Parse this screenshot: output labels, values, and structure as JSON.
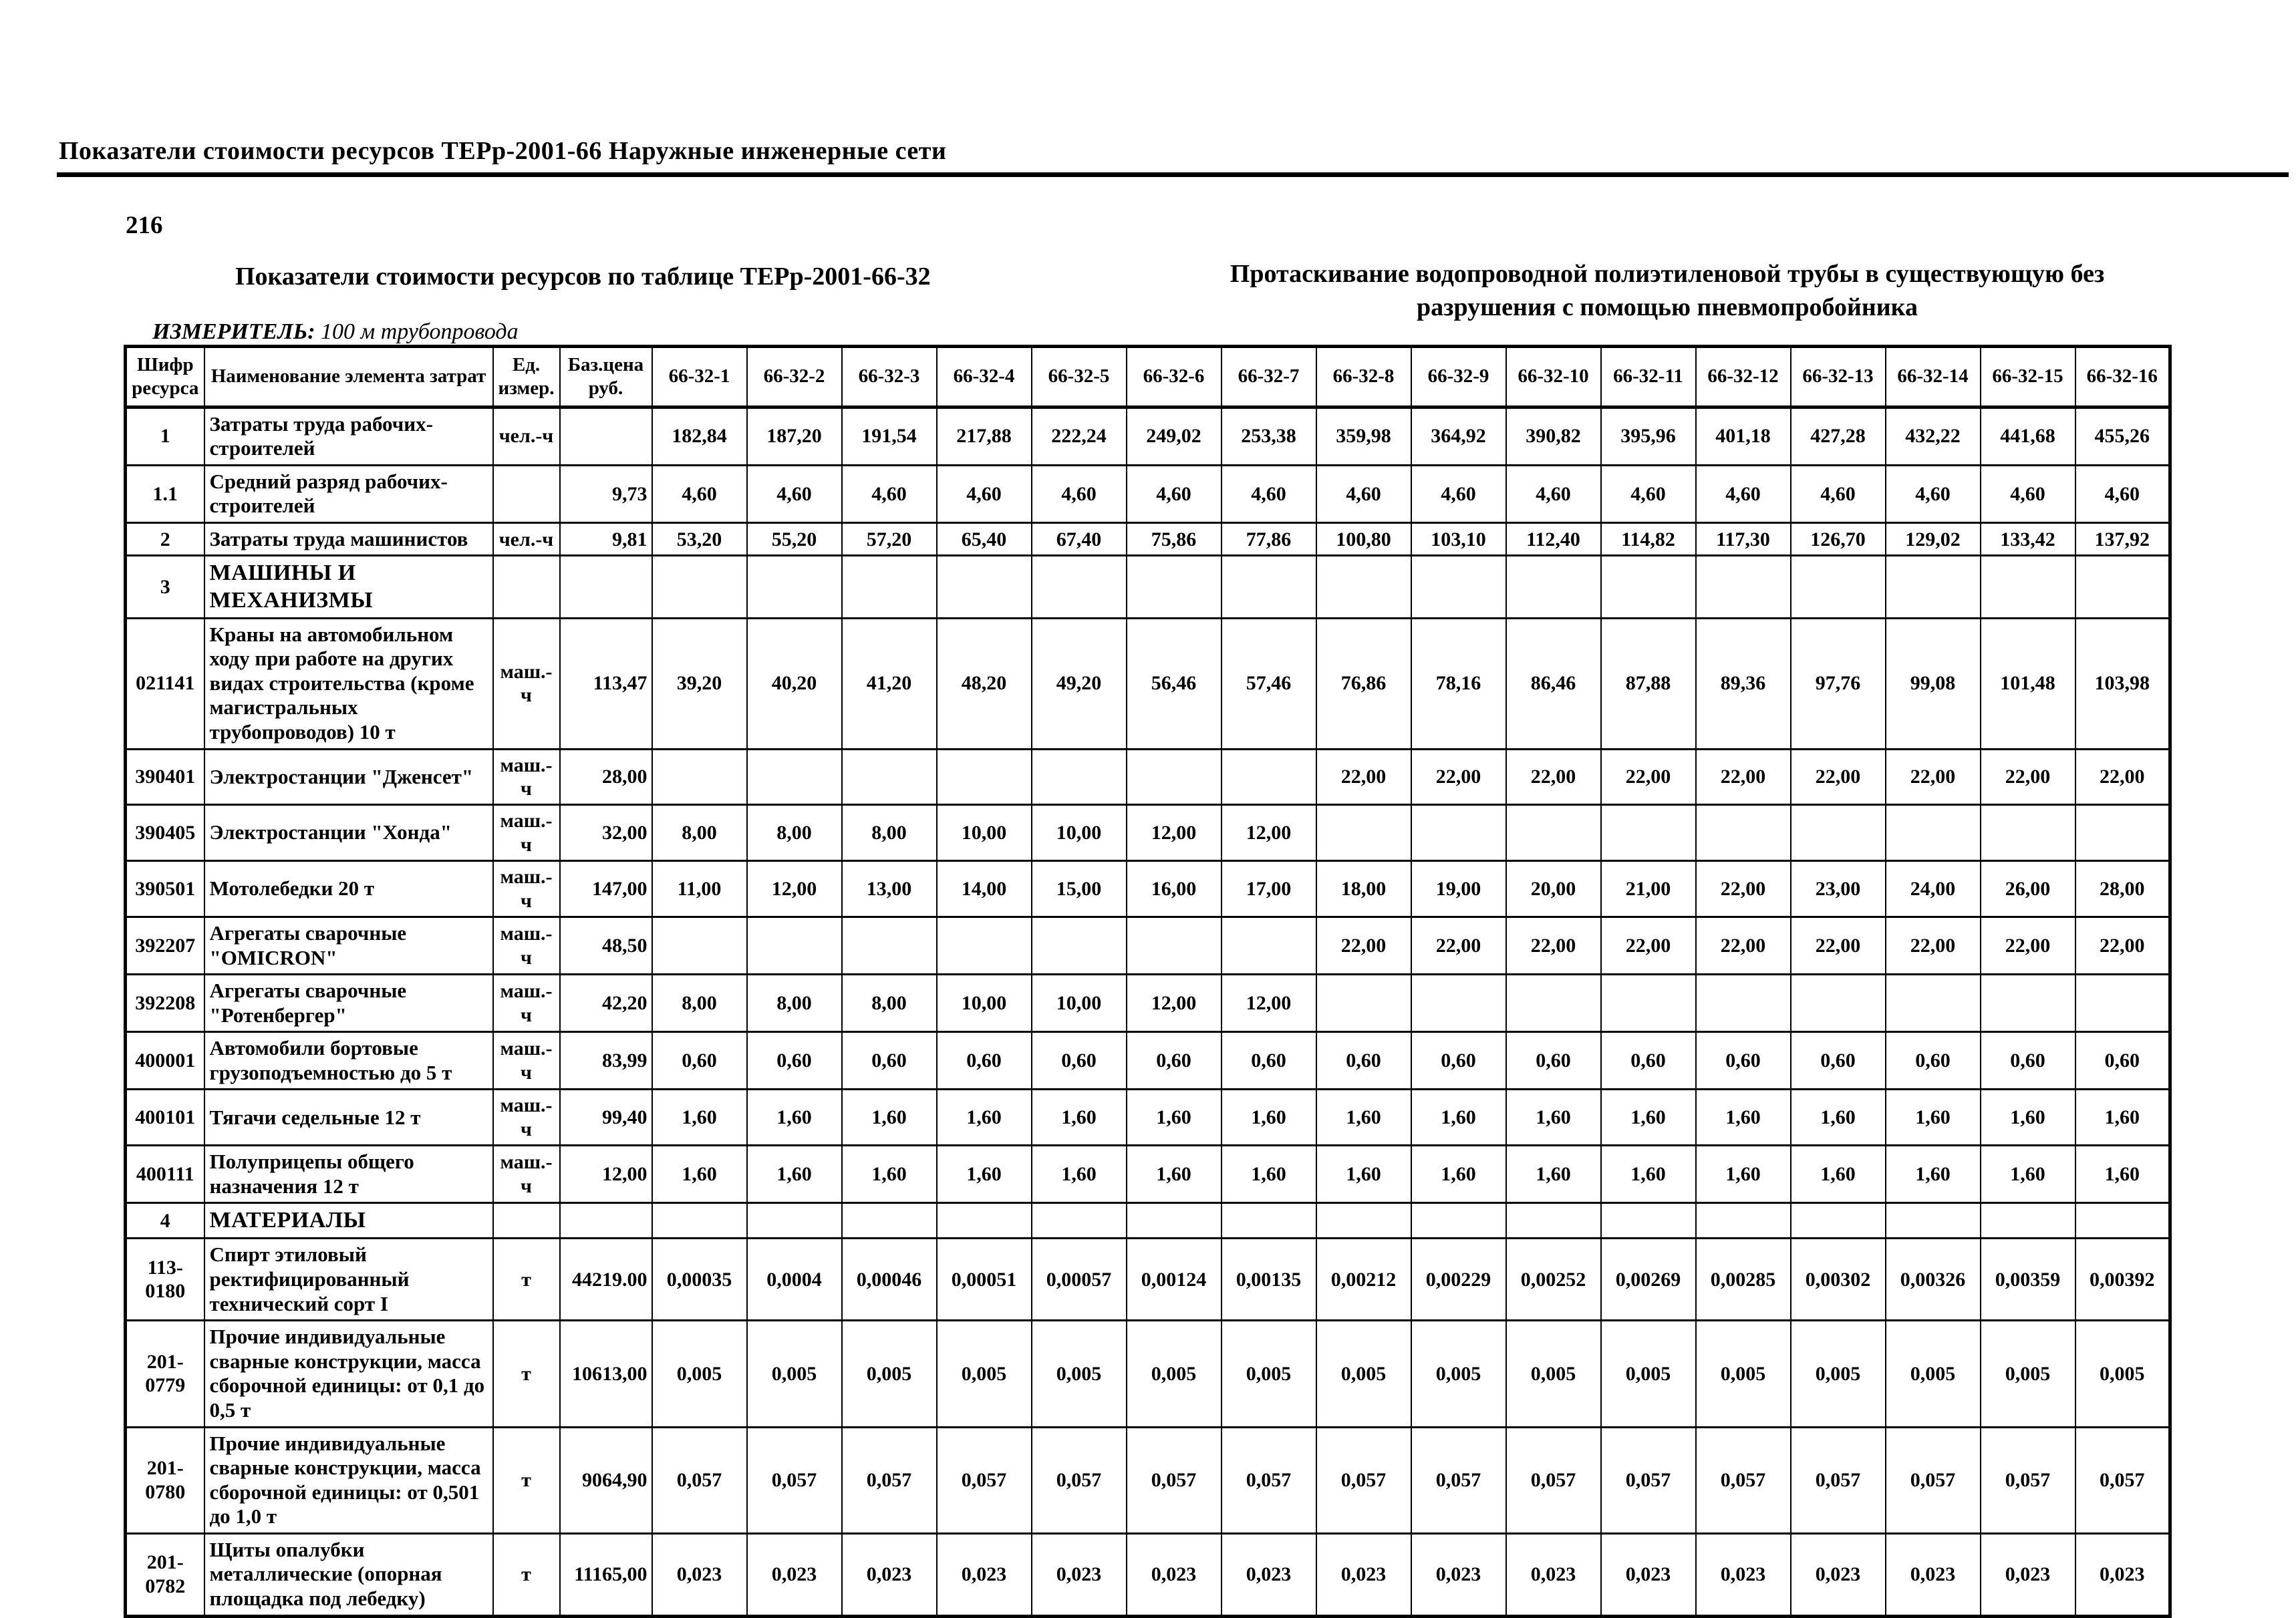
{
  "page": {
    "header": "Показатели стоимости ресурсов ТЕРр-2001-66  Наружные инженерные сети",
    "page_number": "216",
    "table_title": "Показатели стоимости ресурсов по таблице ТЕРр-2001-66-32",
    "work_title": "Протаскивание водопроводной полиэтиленовой трубы в существующую без разрушения с помощью пневмопробойника",
    "measurer_label": "ИЗМЕРИТЕЛЬ:",
    "measurer_value": "100 м трубопровода"
  },
  "table": {
    "columns": [
      "Шифр ресурса",
      "Наименование элемента затрат",
      "Ед. измер.",
      "Баз.цена руб.",
      "66-32-1",
      "66-32-2",
      "66-32-3",
      "66-32-4",
      "66-32-5",
      "66-32-6",
      "66-32-7",
      "66-32-8",
      "66-32-9",
      "66-32-10",
      "66-32-11",
      "66-32-12",
      "66-32-13",
      "66-32-14",
      "66-32-15",
      "66-32-16"
    ],
    "rows": [
      {
        "code": "1",
        "name": "Затраты труда рабочих-строителей",
        "unit": "чел.-ч",
        "base": "",
        "section": false,
        "values": [
          "182,84",
          "187,20",
          "191,54",
          "217,88",
          "222,24",
          "249,02",
          "253,38",
          "359,98",
          "364,92",
          "390,82",
          "395,96",
          "401,18",
          "427,28",
          "432,22",
          "441,68",
          "455,26"
        ]
      },
      {
        "code": "1.1",
        "name": "Средний разряд рабочих-строителей",
        "unit": "",
        "base": "9,73",
        "section": false,
        "values": [
          "4,60",
          "4,60",
          "4,60",
          "4,60",
          "4,60",
          "4,60",
          "4,60",
          "4,60",
          "4,60",
          "4,60",
          "4,60",
          "4,60",
          "4,60",
          "4,60",
          "4,60",
          "4,60"
        ]
      },
      {
        "code": "2",
        "name": "Затраты труда машинистов",
        "unit": "чел.-ч",
        "base": "9,81",
        "section": false,
        "values": [
          "53,20",
          "55,20",
          "57,20",
          "65,40",
          "67,40",
          "75,86",
          "77,86",
          "100,80",
          "103,10",
          "112,40",
          "114,82",
          "117,30",
          "126,70",
          "129,02",
          "133,42",
          "137,92"
        ]
      },
      {
        "code": "3",
        "name": "МАШИНЫ И\nМЕХАНИЗМЫ",
        "unit": "",
        "base": "",
        "section": true,
        "values": [
          "",
          "",
          "",
          "",
          "",
          "",
          "",
          "",
          "",
          "",
          "",
          "",
          "",
          "",
          "",
          ""
        ]
      },
      {
        "code": "021141",
        "name": "Краны на автомобильном ходу при работе на других видах строительства (кроме магистральных трубопроводов) 10 т",
        "unit": "маш.-ч",
        "base": "113,47",
        "section": false,
        "values": [
          "39,20",
          "40,20",
          "41,20",
          "48,20",
          "49,20",
          "56,46",
          "57,46",
          "76,86",
          "78,16",
          "86,46",
          "87,88",
          "89,36",
          "97,76",
          "99,08",
          "101,48",
          "103,98"
        ]
      },
      {
        "code": "390401",
        "name": "Электростанции \"Дженсет\"",
        "unit": "маш.-ч",
        "base": "28,00",
        "section": false,
        "values": [
          "",
          "",
          "",
          "",
          "",
          "",
          "",
          "22,00",
          "22,00",
          "22,00",
          "22,00",
          "22,00",
          "22,00",
          "22,00",
          "22,00",
          "22,00"
        ]
      },
      {
        "code": "390405",
        "name": "Электростанции \"Хонда\"",
        "unit": "маш.-ч",
        "base": "32,00",
        "section": false,
        "values": [
          "8,00",
          "8,00",
          "8,00",
          "10,00",
          "10,00",
          "12,00",
          "12,00",
          "",
          "",
          "",
          "",
          "",
          "",
          "",
          "",
          ""
        ]
      },
      {
        "code": "390501",
        "name": "Мотолебедки 20 т",
        "unit": "маш.-ч",
        "base": "147,00",
        "section": false,
        "values": [
          "11,00",
          "12,00",
          "13,00",
          "14,00",
          "15,00",
          "16,00",
          "17,00",
          "18,00",
          "19,00",
          "20,00",
          "21,00",
          "22,00",
          "23,00",
          "24,00",
          "26,00",
          "28,00"
        ]
      },
      {
        "code": "392207",
        "name": "Агрегаты сварочные \"OMICRON\"",
        "unit": "маш.-ч",
        "base": "48,50",
        "section": false,
        "values": [
          "",
          "",
          "",
          "",
          "",
          "",
          "",
          "22,00",
          "22,00",
          "22,00",
          "22,00",
          "22,00",
          "22,00",
          "22,00",
          "22,00",
          "22,00"
        ]
      },
      {
        "code": "392208",
        "name": "Агрегаты сварочные \"Ротенбергер\"",
        "unit": "маш.-ч",
        "base": "42,20",
        "section": false,
        "values": [
          "8,00",
          "8,00",
          "8,00",
          "10,00",
          "10,00",
          "12,00",
          "12,00",
          "",
          "",
          "",
          "",
          "",
          "",
          "",
          "",
          ""
        ]
      },
      {
        "code": "400001",
        "name": "Автомобили бортовые грузоподъемностью до 5 т",
        "unit": "маш.-ч",
        "base": "83,99",
        "section": false,
        "values": [
          "0,60",
          "0,60",
          "0,60",
          "0,60",
          "0,60",
          "0,60",
          "0,60",
          "0,60",
          "0,60",
          "0,60",
          "0,60",
          "0,60",
          "0,60",
          "0,60",
          "0,60",
          "0,60"
        ]
      },
      {
        "code": "400101",
        "name": "Тягачи седельные 12 т",
        "unit": "маш.-ч",
        "base": "99,40",
        "section": false,
        "values": [
          "1,60",
          "1,60",
          "1,60",
          "1,60",
          "1,60",
          "1,60",
          "1,60",
          "1,60",
          "1,60",
          "1,60",
          "1,60",
          "1,60",
          "1,60",
          "1,60",
          "1,60",
          "1,60"
        ]
      },
      {
        "code": "400111",
        "name": "Полуприцепы общего назначения 12 т",
        "unit": "маш.-ч",
        "base": "12,00",
        "section": false,
        "values": [
          "1,60",
          "1,60",
          "1,60",
          "1,60",
          "1,60",
          "1,60",
          "1,60",
          "1,60",
          "1,60",
          "1,60",
          "1,60",
          "1,60",
          "1,60",
          "1,60",
          "1,60",
          "1,60"
        ]
      },
      {
        "code": "4",
        "name": "МАТЕРИАЛЫ",
        "unit": "",
        "base": "",
        "section": true,
        "values": [
          "",
          "",
          "",
          "",
          "",
          "",
          "",
          "",
          "",
          "",
          "",
          "",
          "",
          "",
          "",
          ""
        ]
      },
      {
        "code": "113-0180",
        "name": "Спирт этиловый ректифицированный технический сорт I",
        "unit": "т",
        "base": "44219.00",
        "section": false,
        "values": [
          "0,00035",
          "0,0004",
          "0,00046",
          "0,00051",
          "0,00057",
          "0,00124",
          "0,00135",
          "0,00212",
          "0,00229",
          "0,00252",
          "0,00269",
          "0,00285",
          "0,00302",
          "0,00326",
          "0,00359",
          "0,00392"
        ]
      },
      {
        "code": "201-0779",
        "name": "Прочие индивидуальные сварные конструкции, масса сборочной единицы: от 0,1 до 0,5 т",
        "unit": "т",
        "base": "10613,00",
        "section": false,
        "values": [
          "0,005",
          "0,005",
          "0,005",
          "0,005",
          "0,005",
          "0,005",
          "0,005",
          "0,005",
          "0,005",
          "0,005",
          "0,005",
          "0,005",
          "0,005",
          "0,005",
          "0,005",
          "0,005"
        ]
      },
      {
        "code": "201-0780",
        "name": "Прочие индивидуальные сварные конструкции, масса сборочной единицы: от 0,501 до 1,0 т",
        "unit": "т",
        "base": "9064,90",
        "section": false,
        "values": [
          "0,057",
          "0,057",
          "0,057",
          "0,057",
          "0,057",
          "0,057",
          "0,057",
          "0,057",
          "0,057",
          "0,057",
          "0,057",
          "0,057",
          "0,057",
          "0,057",
          "0,057",
          "0,057"
        ]
      },
      {
        "code": "201-0782",
        "name": "Щиты опалубки металлические (опорная площадка под лебедку)",
        "unit": "т",
        "base": "11165,00",
        "section": false,
        "values": [
          "0,023",
          "0,023",
          "0,023",
          "0,023",
          "0,023",
          "0,023",
          "0,023",
          "0,023",
          "0,023",
          "0,023",
          "0,023",
          "0,023",
          "0,023",
          "0,023",
          "0,023",
          "0,023"
        ]
      }
    ]
  }
}
